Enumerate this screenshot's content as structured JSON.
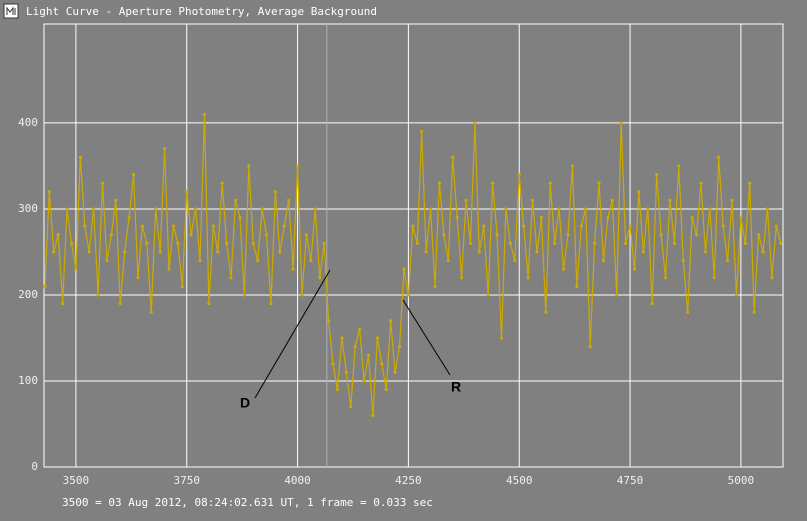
{
  "chart_data": {
    "type": "line",
    "title": "Light Curve - Aperture Photometry, Average Background",
    "footer": "3500 = 03 Aug 2012, 08:24:02.631 UT, 1 frame = 0.033 sec",
    "annotations": [
      "D",
      "R"
    ],
    "marker_x": 4066,
    "color": "#ccaa00",
    "grid": true,
    "xlim": [
      3428,
      5095
    ],
    "ylim": [
      0,
      515
    ],
    "xticks": [
      3500,
      3750,
      4000,
      4250,
      4500,
      4750,
      5000
    ],
    "yticks": [
      0,
      100,
      200,
      300,
      400
    ],
    "x": [
      3430,
      3440,
      3450,
      3460,
      3470,
      3480,
      3490,
      3500,
      3510,
      3520,
      3530,
      3540,
      3550,
      3560,
      3570,
      3580,
      3590,
      3600,
      3610,
      3620,
      3630,
      3640,
      3650,
      3660,
      3670,
      3680,
      3690,
      3700,
      3710,
      3720,
      3730,
      3740,
      3750,
      3760,
      3770,
      3780,
      3790,
      3800,
      3810,
      3820,
      3830,
      3840,
      3850,
      3860,
      3870,
      3880,
      3890,
      3900,
      3910,
      3920,
      3930,
      3940,
      3950,
      3960,
      3970,
      3980,
      3990,
      4000,
      4010,
      4020,
      4030,
      4040,
      4050,
      4060,
      4070,
      4080,
      4090,
      4100,
      4110,
      4120,
      4130,
      4140,
      4150,
      4160,
      4170,
      4180,
      4190,
      4200,
      4210,
      4220,
      4230,
      4240,
      4250,
      4260,
      4270,
      4280,
      4290,
      4300,
      4310,
      4320,
      4330,
      4340,
      4350,
      4360,
      4370,
      4380,
      4390,
      4400,
      4410,
      4420,
      4430,
      4440,
      4450,
      4460,
      4470,
      4480,
      4490,
      4500,
      4510,
      4520,
      4530,
      4540,
      4550,
      4560,
      4570,
      4580,
      4590,
      4600,
      4610,
      4620,
      4630,
      4640,
      4650,
      4660,
      4670,
      4680,
      4690,
      4700,
      4710,
      4720,
      4730,
      4740,
      4750,
      4760,
      4770,
      4780,
      4790,
      4800,
      4810,
      4820,
      4830,
      4840,
      4850,
      4860,
      4870,
      4880,
      4890,
      4900,
      4910,
      4920,
      4930,
      4940,
      4950,
      4960,
      4970,
      4980,
      4990,
      5000,
      5010,
      5020,
      5030,
      5040,
      5050,
      5060,
      5070,
      5080,
      5090
    ],
    "values": [
      210,
      320,
      250,
      270,
      190,
      300,
      260,
      230,
      360,
      280,
      250,
      300,
      200,
      330,
      240,
      270,
      310,
      190,
      250,
      290,
      340,
      220,
      280,
      260,
      180,
      300,
      250,
      370,
      230,
      280,
      260,
      210,
      320,
      270,
      300,
      240,
      410,
      190,
      280,
      250,
      330,
      260,
      220,
      310,
      290,
      200,
      350,
      260,
      240,
      300,
      270,
      190,
      320,
      250,
      280,
      310,
      230,
      350,
      200,
      270,
      240,
      300,
      220,
      260,
      170,
      120,
      90,
      150,
      110,
      70,
      140,
      160,
      100,
      130,
      60,
      150,
      120,
      90,
      170,
      110,
      140,
      230,
      200,
      280,
      260,
      390,
      250,
      300,
      210,
      330,
      270,
      240,
      360,
      290,
      220,
      310,
      260,
      400,
      250,
      280,
      200,
      330,
      270,
      150,
      300,
      260,
      240,
      340,
      280,
      220,
      310,
      250,
      290,
      180,
      330,
      260,
      300,
      230,
      270,
      350,
      210,
      280,
      300,
      140,
      260,
      330,
      240,
      290,
      310,
      200,
      400,
      260,
      280,
      230,
      320,
      250,
      300,
      190,
      340,
      270,
      220,
      310,
      260,
      350,
      240,
      180,
      290,
      270,
      330,
      250,
      300,
      220,
      360,
      280,
      240,
      310,
      200,
      290,
      260,
      330,
      180,
      270,
      250,
      300,
      220,
      280,
      260
    ]
  }
}
